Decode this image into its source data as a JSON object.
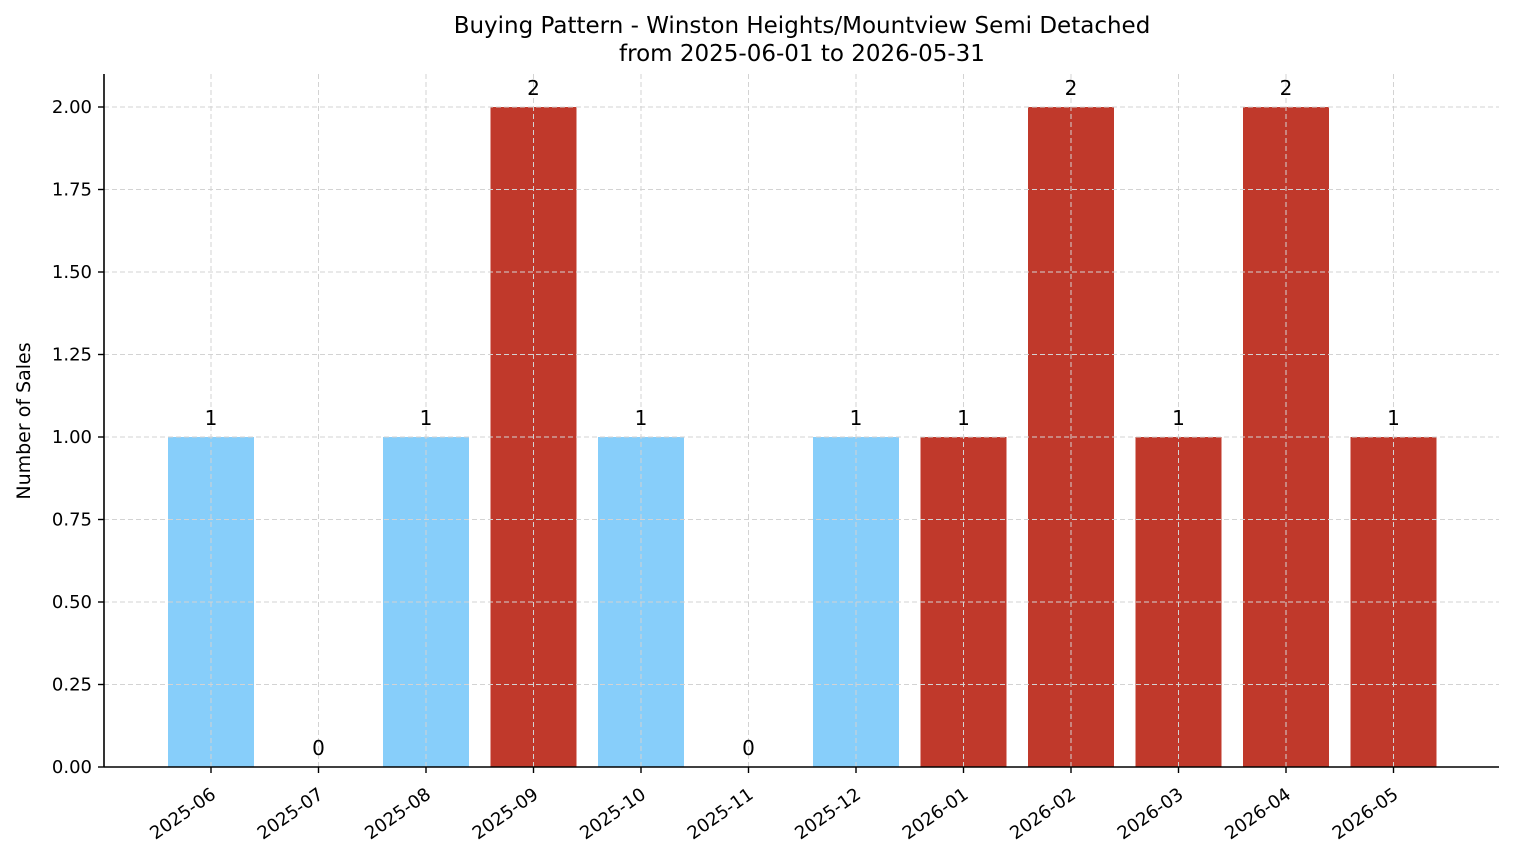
{
  "chart_data": {
    "type": "bar",
    "title": "Buying Pattern - Winston Heights/Mountview Semi Detached",
    "subtitle": "from 2025-06-01 to 2026-05-31",
    "xlabel": "",
    "ylabel": "Number of Sales",
    "ylim": [
      0,
      2.1
    ],
    "yticks": [
      "0.00",
      "0.25",
      "0.50",
      "0.75",
      "1.00",
      "1.25",
      "1.50",
      "1.75",
      "2.00"
    ],
    "ytick_values": [
      0,
      0.25,
      0.5,
      0.75,
      1.0,
      1.25,
      1.5,
      1.75,
      2.0
    ],
    "grid": true,
    "categories": [
      "2025-06",
      "2025-07",
      "2025-08",
      "2025-09",
      "2025-10",
      "2025-11",
      "2025-12",
      "2026-01",
      "2026-02",
      "2026-03",
      "2026-04",
      "2026-05"
    ],
    "values": [
      1,
      0,
      1,
      2,
      1,
      0,
      1,
      1,
      2,
      1,
      2,
      1
    ],
    "data_labels": [
      "1",
      "0",
      "1",
      "2",
      "1",
      "0",
      "1",
      "1",
      "2",
      "1",
      "2",
      "1"
    ],
    "bar_colors": [
      "#87cefa",
      "#87cefa",
      "#87cefa",
      "#c0392b",
      "#87cefa",
      "#87cefa",
      "#87cefa",
      "#c0392b",
      "#c0392b",
      "#c0392b",
      "#c0392b",
      "#c0392b"
    ]
  }
}
